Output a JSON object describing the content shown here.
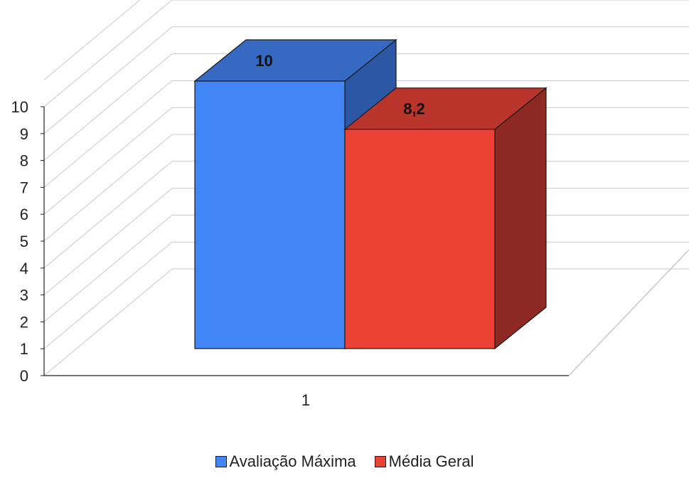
{
  "chart_data": {
    "type": "bar",
    "style": "3d-clustered-column",
    "categories": [
      "1"
    ],
    "series": [
      {
        "name": "Avaliação Máxima",
        "values": [
          10
        ],
        "label": "10",
        "color": "#4285f4",
        "color_side": "#2b57a5",
        "color_top": "#3569c2"
      },
      {
        "name": "Média Geral",
        "values": [
          8.2
        ],
        "label": "8,2",
        "color": "#ea4335",
        "color_side": "#8e2822",
        "color_top": "#b9352b"
      }
    ],
    "yticks": [
      "0",
      "1",
      "2",
      "3",
      "4",
      "5",
      "6",
      "7",
      "8",
      "9",
      "10"
    ],
    "ylim": [
      0,
      10
    ],
    "grid": true,
    "legend": "bottom",
    "title": "",
    "xlabel": "",
    "ylabel": ""
  }
}
